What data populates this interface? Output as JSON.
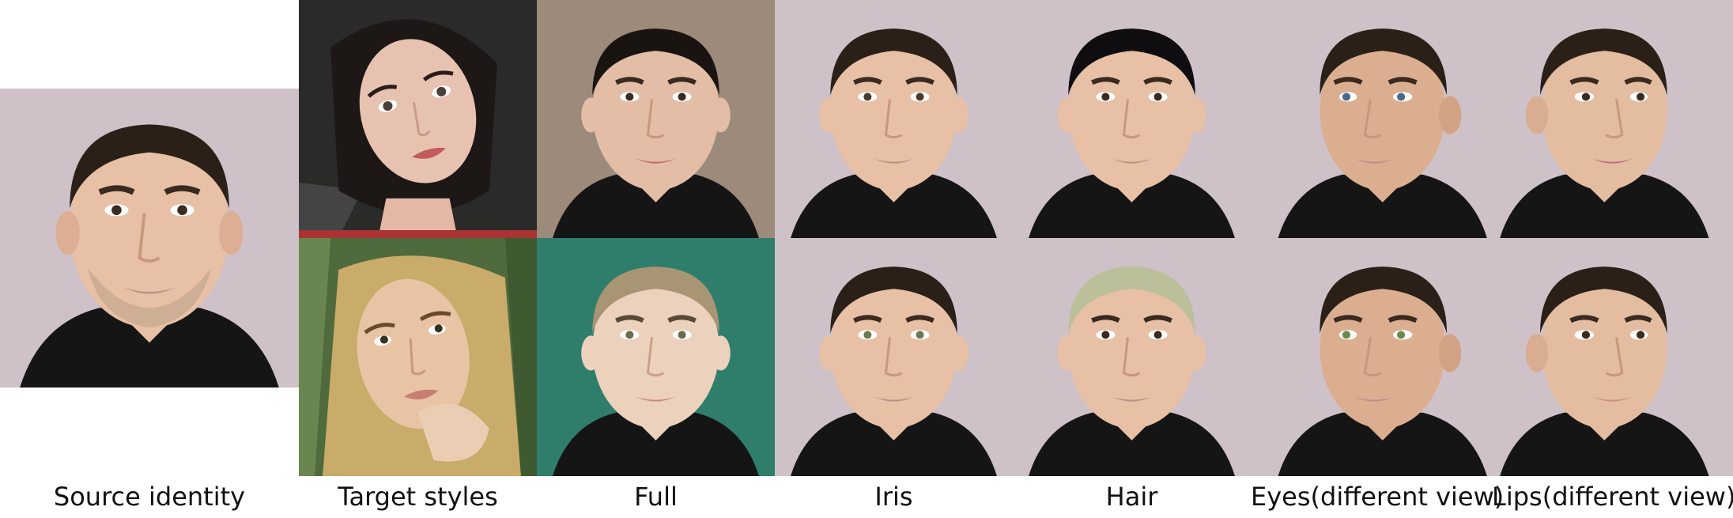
{
  "figure": {
    "columns": [
      {
        "label": "Source identity"
      },
      {
        "label": "Target styles"
      },
      {
        "label": "Full"
      },
      {
        "label": "Iris"
      },
      {
        "label": "Hair"
      },
      {
        "label": "Eyes(different view)"
      },
      {
        "label": "Lips(different view)"
      }
    ],
    "images": {
      "source": {
        "kind": "male-face",
        "hair": "#2a2018",
        "bg": "#cfc1c8",
        "eyes": "#3a2a20",
        "lips": "#b98f86"
      },
      "targets": [
        {
          "kind": "female-face",
          "hair": "#1d1715",
          "bg": "#2a2a28",
          "skin": "#e8c2b0",
          "lips": "#c25a5e"
        },
        {
          "kind": "female-face",
          "hair": "#c9ab6a",
          "bg": "#4f6a3c",
          "skin": "#e8c4a4",
          "lips": "#c77f73"
        }
      ],
      "results": [
        [
          {
            "col": "full",
            "hair": "#1a1410",
            "bg": "#9c8a7a",
            "skin": "#e3bda6",
            "eyes": "#3a2a20",
            "lips": "#c46d68"
          },
          {
            "col": "iris",
            "hair": "#2a2018",
            "bg": "#cfc1c8",
            "skin": "#e7c0a5",
            "eyes": "#4a3a2c",
            "lips": "#b98f86"
          },
          {
            "col": "hair",
            "hair": "#0f0d10",
            "bg": "#cfc1c8",
            "skin": "#e7c0a5",
            "eyes": "#3a2a20",
            "lips": "#b98f86"
          },
          {
            "col": "eyes",
            "hair": "#2a2018",
            "bg": "#cfc1c8",
            "skin": "#dcae90",
            "eyes": "#4b6a8a",
            "lips": "#b98f86"
          },
          {
            "col": "lips",
            "hair": "#2a2018",
            "bg": "#cfc1c8",
            "skin": "#e4bca0",
            "eyes": "#3a2a20",
            "lips": "#b46e82"
          }
        ],
        [
          {
            "col": "full",
            "hair": "#a89574",
            "bg": "#2f7d6b",
            "skin": "#ecd2bd",
            "eyes": "#6a6a4e",
            "lips": "#c68b83"
          },
          {
            "col": "iris",
            "hair": "#2a2018",
            "bg": "#cfc1c8",
            "skin": "#e7c0a5",
            "eyes": "#6c7a52",
            "lips": "#b98f86"
          },
          {
            "col": "hair",
            "hair": "#bcc09a",
            "bg": "#cfc1c8",
            "skin": "#e7c0a5",
            "eyes": "#3a2a20",
            "lips": "#b98f86"
          },
          {
            "col": "eyes",
            "hair": "#2a2018",
            "bg": "#cfc1c8",
            "skin": "#dcae90",
            "eyes": "#6d8a4e",
            "lips": "#b98f86"
          },
          {
            "col": "lips",
            "hair": "#2a2018",
            "bg": "#cfc1c8",
            "skin": "#e4bca0",
            "eyes": "#3a2a20",
            "lips": "#c9928a"
          }
        ]
      ]
    }
  }
}
